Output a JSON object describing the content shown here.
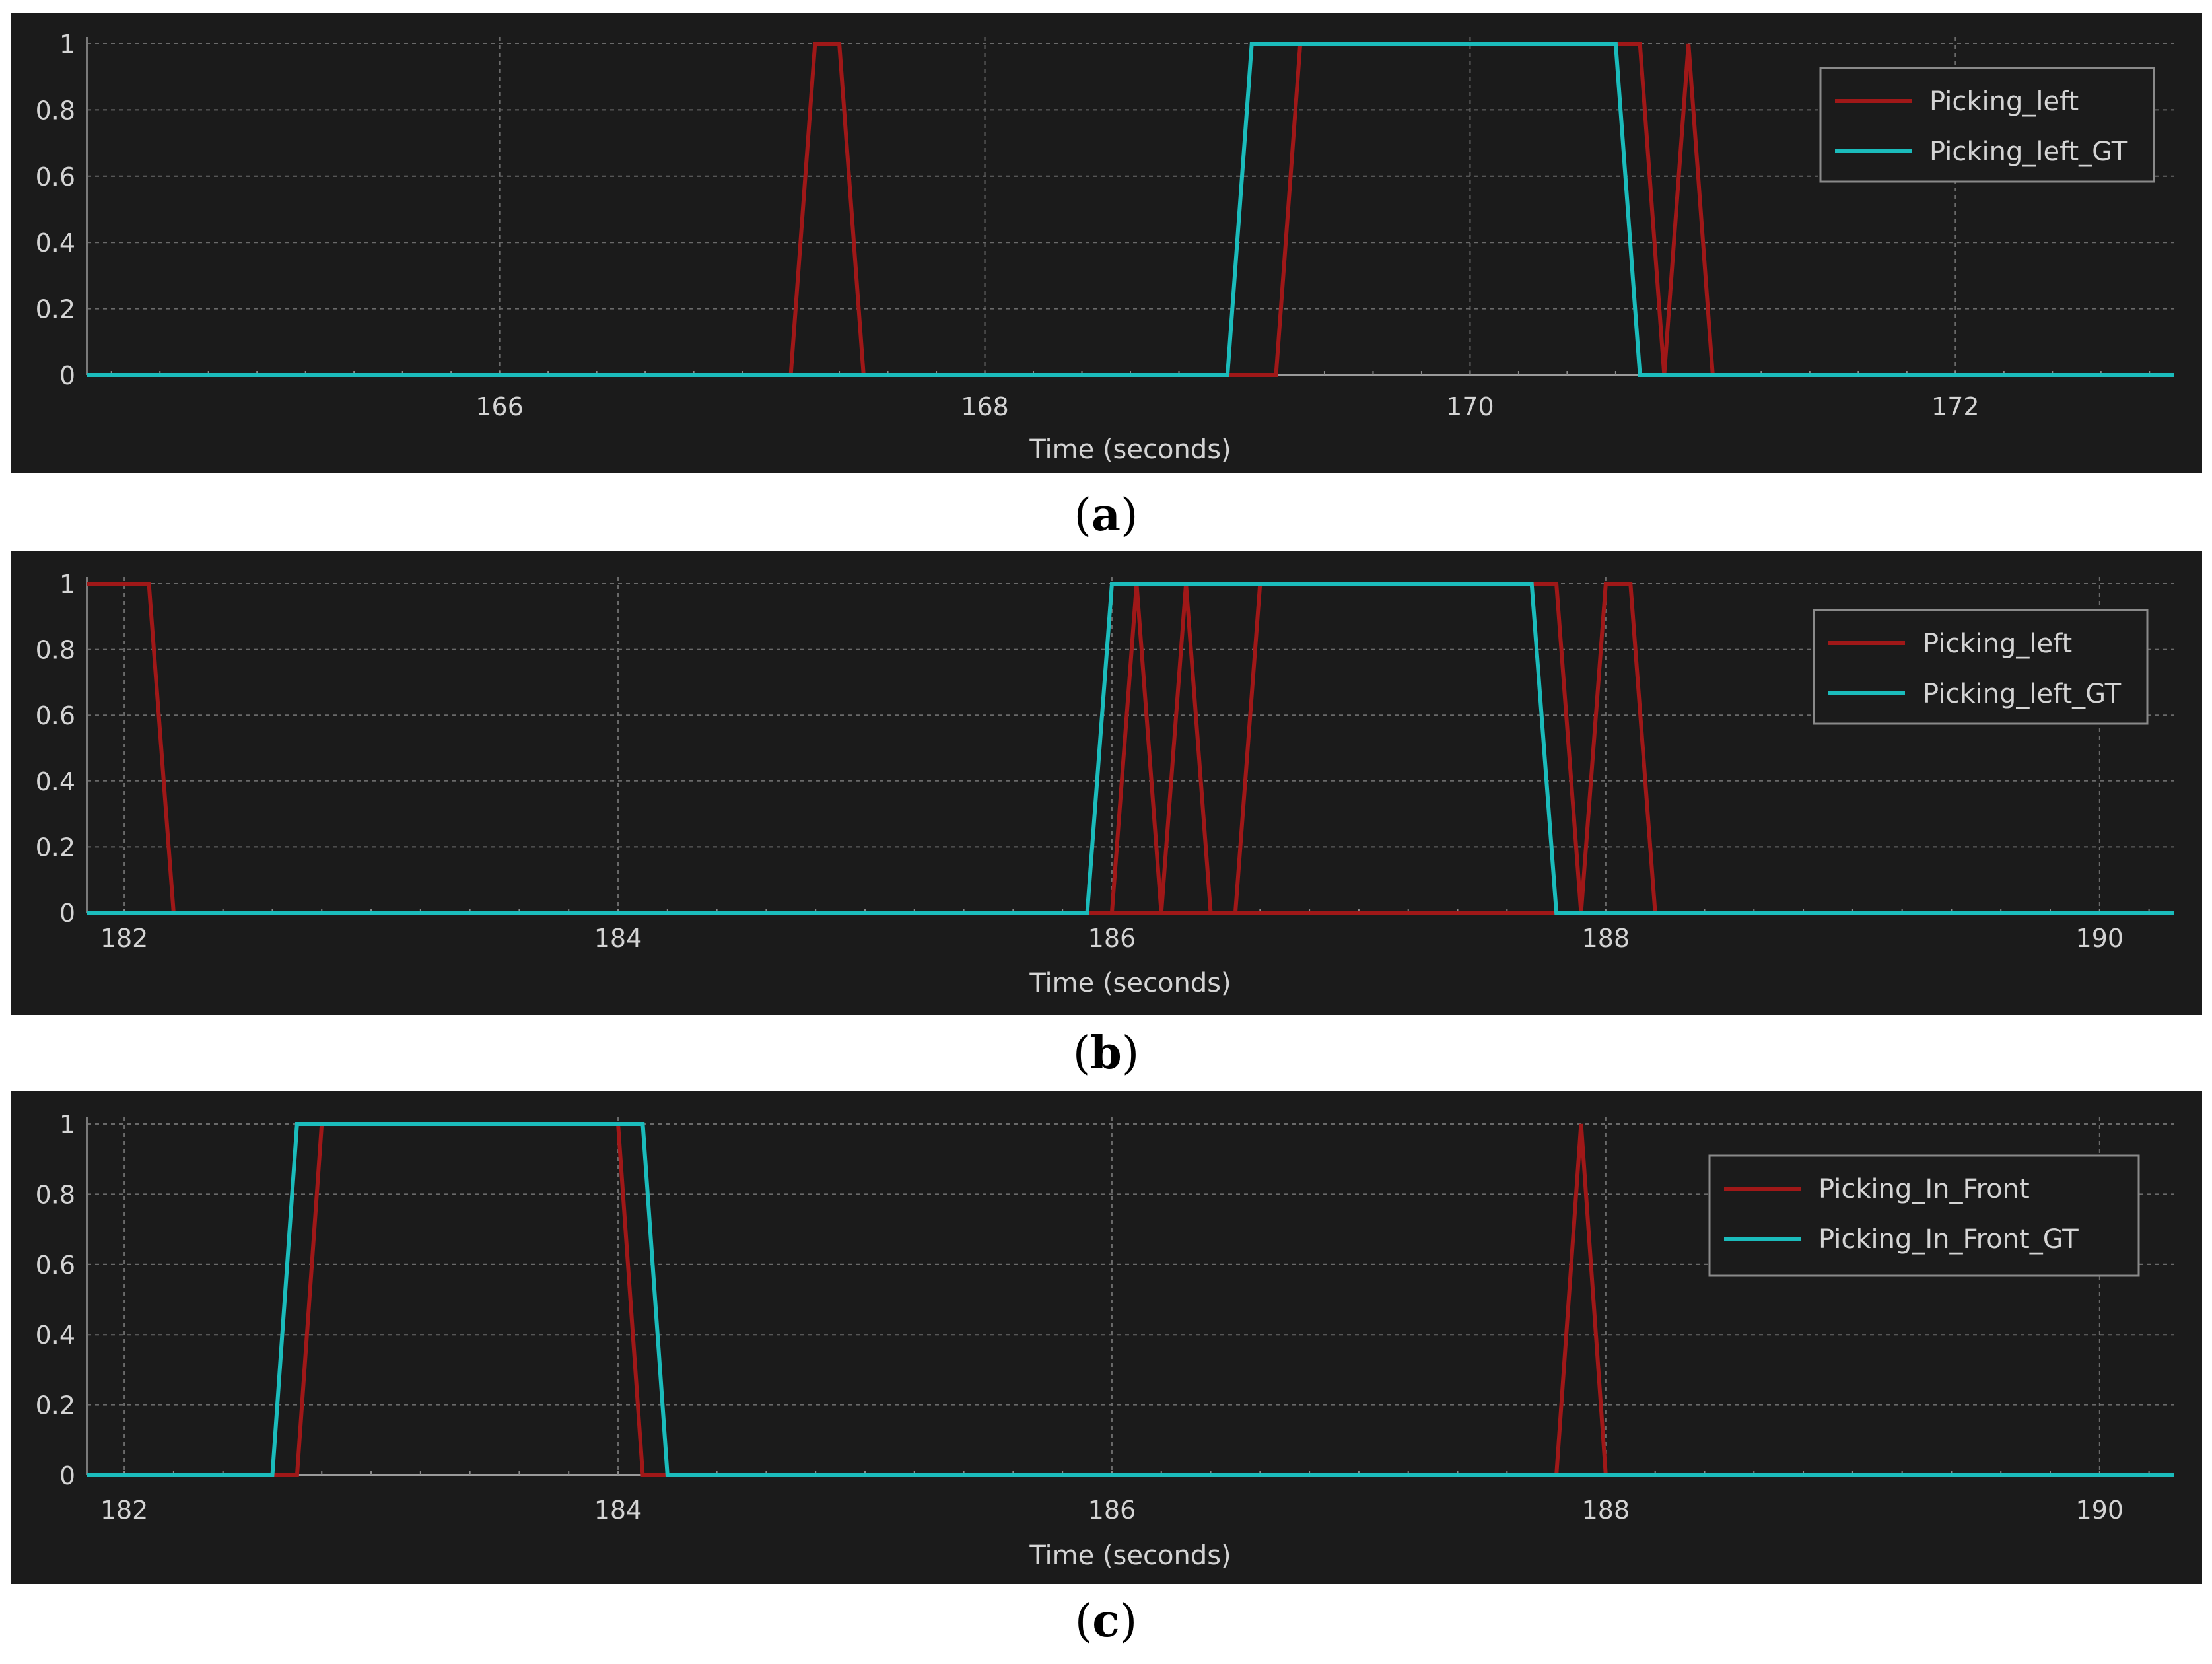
{
  "chart_data": [
    {
      "type": "line",
      "panel": "a",
      "caption": "a",
      "xlabel": "Time (seconds)",
      "xlim": [
        164.3,
        172.9
      ],
      "ylim": [
        0,
        1
      ],
      "xticks": [
        166,
        168,
        170,
        172
      ],
      "yticks": [
        0,
        0.2,
        0.4,
        0.6,
        0.8,
        1
      ],
      "ytick_labels": [
        "0",
        "0.2",
        "0.4",
        "0.6",
        "0.8",
        "1"
      ],
      "grid": true,
      "legend_position": "top-right",
      "series": [
        {
          "name": "Picking_left",
          "color": "#a01818",
          "x": [
            164.3,
            167.2,
            167.3,
            167.4,
            167.5,
            169.0,
            169.2,
            169.3,
            170.6,
            170.7,
            170.8,
            170.9,
            171.0,
            172.9
          ],
          "y": [
            0,
            0,
            1,
            1,
            0,
            0,
            0,
            1,
            1,
            1,
            0,
            1,
            0,
            0
          ]
        },
        {
          "name": "Picking_left_GT",
          "color": "#1bbcbc",
          "x": [
            164.3,
            169.0,
            169.1,
            170.6,
            170.7,
            172.9
          ],
          "y": [
            0,
            0,
            1,
            1,
            0,
            0
          ]
        }
      ]
    },
    {
      "type": "line",
      "panel": "b",
      "caption": "b",
      "xlabel": "Time (seconds)",
      "xlim": [
        181.85,
        190.3
      ],
      "ylim": [
        0,
        1
      ],
      "xticks": [
        182,
        184,
        186,
        188,
        190
      ],
      "yticks": [
        0,
        0.2,
        0.4,
        0.6,
        0.8,
        1
      ],
      "ytick_labels": [
        "0",
        "0.2",
        "0.4",
        "0.6",
        "0.8",
        "1"
      ],
      "grid": true,
      "legend_position": "top-right",
      "series": [
        {
          "name": "Picking_left",
          "color": "#a01818",
          "x": [
            181.85,
            182.1,
            182.2,
            190.3
          ],
          "y": [
            1,
            1,
            0,
            0
          ],
          "x2": [
            185.9,
            186.0,
            186.1,
            186.2,
            186.3,
            186.4,
            186.5,
            186.6,
            187.8,
            187.9,
            188.0,
            188.1,
            188.2,
            190.3
          ],
          "y2": [
            0,
            0,
            1,
            0,
            1,
            0,
            0,
            1,
            1,
            0,
            1,
            1,
            0,
            0
          ]
        },
        {
          "name": "Picking_left_GT",
          "color": "#1bbcbc",
          "x": [
            181.85,
            185.9,
            186.0,
            187.7,
            187.8,
            190.3
          ],
          "y": [
            0,
            0,
            1,
            1,
            0,
            0
          ]
        }
      ]
    },
    {
      "type": "line",
      "panel": "c",
      "caption": "c",
      "xlabel": "Time (seconds)",
      "xlim": [
        181.85,
        190.3
      ],
      "ylim": [
        0,
        1
      ],
      "xticks": [
        182,
        184,
        186,
        188,
        190
      ],
      "yticks": [
        0,
        0.2,
        0.4,
        0.6,
        0.8,
        1
      ],
      "ytick_labels": [
        "0",
        "0.2",
        "0.4",
        "0.6",
        "0.8",
        "1"
      ],
      "grid": true,
      "legend_position": "top-right",
      "series": [
        {
          "name": "Picking_In_Front",
          "color": "#a01818",
          "x": [
            181.85,
            182.7,
            182.8,
            184.0,
            184.1,
            187.8,
            187.9,
            188.0,
            190.3
          ],
          "y": [
            0,
            0,
            1,
            1,
            0,
            0,
            1,
            0,
            0
          ]
        },
        {
          "name": "Picking_In_Front_GT",
          "color": "#1bbcbc",
          "x": [
            181.85,
            182.6,
            182.7,
            184.1,
            184.2,
            190.3
          ],
          "y": [
            0,
            0,
            1,
            1,
            0,
            0
          ]
        }
      ]
    }
  ]
}
